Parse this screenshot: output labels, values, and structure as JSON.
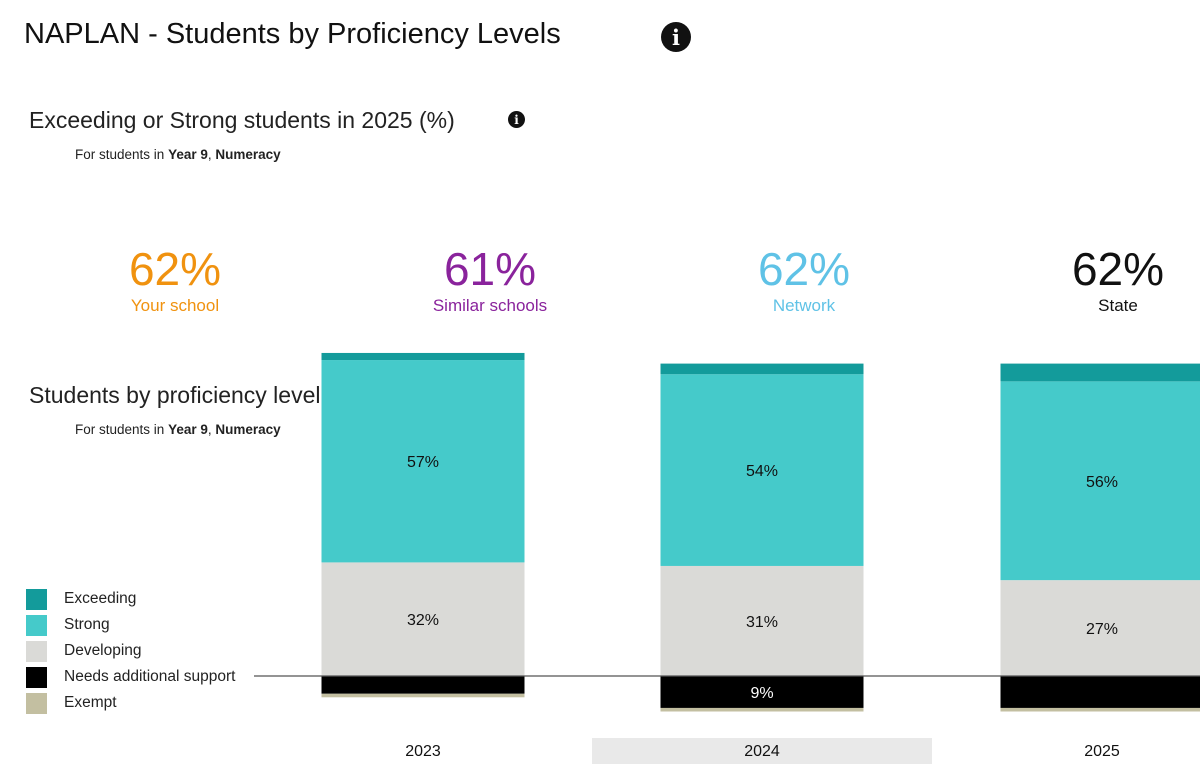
{
  "page": {
    "title": "NAPLAN - Students by Proficiency Levels"
  },
  "summary": {
    "title": "Exceeding or Strong students in 2025 (%)",
    "subtitle_prefix": "For students in",
    "year": "Year 9",
    "separator": ",",
    "domain": "Numeracy",
    "kpis": [
      {
        "value": "62%",
        "label": "Your school",
        "color": "#f0920f"
      },
      {
        "value": "61%",
        "label": "Similar schools",
        "color": "#8a239c"
      },
      {
        "value": "62%",
        "label": "Network",
        "color": "#5fc2e6"
      },
      {
        "value": "62%",
        "label": "State",
        "color": "#111111"
      }
    ]
  },
  "proficiency": {
    "title": "Students by proficiency level (%)",
    "subtitle_prefix": "For students in",
    "year": "Year 9",
    "separator": ",",
    "domain": "Numeracy",
    "legend": [
      {
        "label": "Exceeding",
        "color": "#139b9b"
      },
      {
        "label": "Strong",
        "color": "#45caca"
      },
      {
        "label": "Developing",
        "color": "#dadad7"
      },
      {
        "label": "Needs additional support",
        "color": "#000000"
      },
      {
        "label": "Exempt",
        "color": "#c3bfa1"
      }
    ]
  },
  "chart_data": {
    "type": "bar",
    "stacking": "diverging",
    "categories": [
      "2023",
      "2024",
      "2025"
    ],
    "highlighted_category": "2024",
    "series": [
      {
        "name": "Exceeding",
        "color": "#139b9b",
        "values": [
          2,
          3,
          5
        ]
      },
      {
        "name": "Strong",
        "color": "#45caca",
        "values": [
          57,
          54,
          56
        ]
      },
      {
        "name": "Developing",
        "color": "#dadad7",
        "values": [
          32,
          31,
          27
        ]
      },
      {
        "name": "Needs additional support",
        "color": "#000000",
        "values": [
          5,
          9,
          9
        ]
      },
      {
        "name": "Exempt",
        "color": "#c3bfa1",
        "values": [
          1,
          1,
          1
        ]
      }
    ],
    "data_labels": [
      {
        "category": "2023",
        "series": "Strong",
        "text": "57%"
      },
      {
        "category": "2023",
        "series": "Developing",
        "text": "32%"
      },
      {
        "category": "2024",
        "series": "Strong",
        "text": "54%"
      },
      {
        "category": "2024",
        "series": "Developing",
        "text": "31%"
      },
      {
        "category": "2024",
        "series": "Needs additional support",
        "text": "9%"
      },
      {
        "category": "2025",
        "series": "Strong",
        "text": "56%"
      },
      {
        "category": "2025",
        "series": "Developing",
        "text": "27%"
      }
    ],
    "legend_position": "left",
    "grid": false
  }
}
